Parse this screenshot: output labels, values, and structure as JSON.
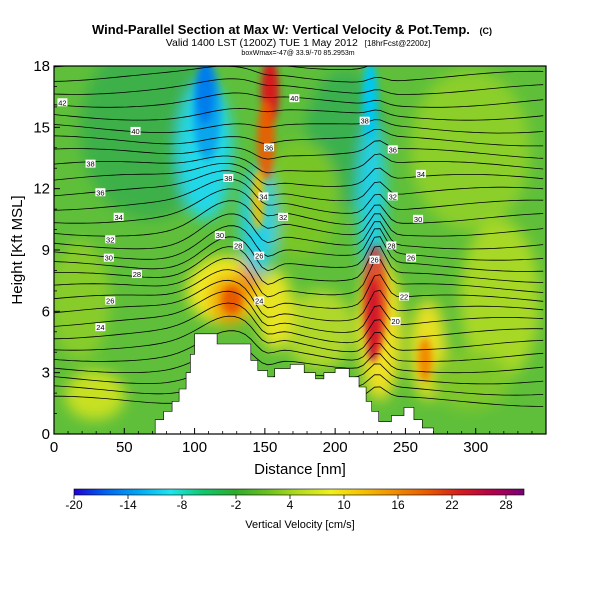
{
  "chart_data": {
    "type": "heatmap",
    "title": "Wind-Parallel Section at Max W: Vertical Velocity & Pot.Temp.",
    "title_mark": "(C)",
    "subtitle": "Valid 1400 LST (1200Z) TUE 1 May 2012",
    "subtitle_forecast": "[18hrFcst@2200z]",
    "info_line": "boxWmax=-47@ 33.9/-70 85.2953m",
    "xlabel": "Distance [nm]",
    "ylabel": "Height [Kft MSL]",
    "xlim": [
      0,
      350
    ],
    "ylim": [
      0,
      18
    ],
    "x_ticks": [
      "0",
      "50",
      "100",
      "150",
      "200",
      "250",
      "300"
    ],
    "x_tick_values": [
      0,
      50,
      100,
      150,
      200,
      250,
      300
    ],
    "y_ticks": [
      "0",
      "3",
      "6",
      "9",
      "12",
      "15",
      "18"
    ],
    "y_tick_values": [
      0,
      3,
      6,
      9,
      12,
      15,
      18
    ],
    "grid": false,
    "colorbar": {
      "label": "Vertical Velocity [cm/s]",
      "ticks": [
        "-20",
        "-14",
        "-8",
        "-2",
        "4",
        "10",
        "16",
        "22",
        "28"
      ],
      "tick_values": [
        -20,
        -14,
        -8,
        -2,
        4,
        10,
        16,
        22,
        28
      ],
      "range": [
        -20,
        30
      ],
      "colors": [
        "#1d00d6",
        "#0064f0",
        "#00a8f5",
        "#1ee6ee",
        "#10c870",
        "#2daa2d",
        "#68c020",
        "#b4dc1e",
        "#f0f01e",
        "#f5c000",
        "#f08c00",
        "#e85a00",
        "#d41e1e",
        "#b4004a",
        "#780078"
      ]
    },
    "contour_labels": [
      {
        "text": "42",
        "x": 6,
        "y": 16.2
      },
      {
        "text": "40",
        "x": 58,
        "y": 14.8
      },
      {
        "text": "38",
        "x": 26,
        "y": 13.2
      },
      {
        "text": "36",
        "x": 33,
        "y": 11.8
      },
      {
        "text": "34",
        "x": 46,
        "y": 10.6
      },
      {
        "text": "32",
        "x": 40,
        "y": 9.5
      },
      {
        "text": "30",
        "x": 39,
        "y": 8.6
      },
      {
        "text": "28",
        "x": 59,
        "y": 7.8
      },
      {
        "text": "26",
        "x": 40,
        "y": 6.5
      },
      {
        "text": "24",
        "x": 33,
        "y": 5.2
      },
      {
        "text": "40",
        "x": 171,
        "y": 16.4
      },
      {
        "text": "38",
        "x": 221,
        "y": 15.3
      },
      {
        "text": "36",
        "x": 153,
        "y": 14.0
      },
      {
        "text": "36",
        "x": 241,
        "y": 13.9
      },
      {
        "text": "38",
        "x": 124,
        "y": 12.5
      },
      {
        "text": "34",
        "x": 261,
        "y": 12.7
      },
      {
        "text": "34",
        "x": 149,
        "y": 11.6
      },
      {
        "text": "32",
        "x": 241,
        "y": 11.6
      },
      {
        "text": "32",
        "x": 163,
        "y": 10.6
      },
      {
        "text": "30",
        "x": 118,
        "y": 9.7
      },
      {
        "text": "30",
        "x": 259,
        "y": 10.5
      },
      {
        "text": "28",
        "x": 131,
        "y": 9.2
      },
      {
        "text": "28",
        "x": 240,
        "y": 9.2
      },
      {
        "text": "26",
        "x": 146,
        "y": 8.7
      },
      {
        "text": "26",
        "x": 228,
        "y": 8.5
      },
      {
        "text": "26",
        "x": 254,
        "y": 8.6
      },
      {
        "text": "24",
        "x": 146,
        "y": 6.5
      },
      {
        "text": "22",
        "x": 249,
        "y": 6.7
      },
      {
        "text": "20",
        "x": 243,
        "y": 5.5
      }
    ],
    "terrain": [
      [
        0,
        0
      ],
      [
        72,
        0
      ],
      [
        72,
        0.7
      ],
      [
        78,
        0.7
      ],
      [
        78,
        1.1
      ],
      [
        84,
        1.1
      ],
      [
        84,
        1.6
      ],
      [
        89,
        1.6
      ],
      [
        89,
        2.2
      ],
      [
        94,
        2.2
      ],
      [
        94,
        3.0
      ],
      [
        97,
        3.0
      ],
      [
        97,
        3.9
      ],
      [
        100,
        3.9
      ],
      [
        100,
        4.9
      ],
      [
        116,
        4.9
      ],
      [
        116,
        4.4
      ],
      [
        140,
        4.4
      ],
      [
        140,
        3.6
      ],
      [
        145,
        3.6
      ],
      [
        145,
        3.1
      ],
      [
        152,
        3.1
      ],
      [
        152,
        2.8
      ],
      [
        157,
        2.8
      ],
      [
        157,
        3.2
      ],
      [
        168,
        3.2
      ],
      [
        168,
        3.4
      ],
      [
        178,
        3.4
      ],
      [
        178,
        3.0
      ],
      [
        186,
        3.0
      ],
      [
        186,
        2.7
      ],
      [
        192,
        2.7
      ],
      [
        192,
        3.0
      ],
      [
        200,
        3.0
      ],
      [
        200,
        3.2
      ],
      [
        210,
        3.2
      ],
      [
        210,
        2.8
      ],
      [
        217,
        2.8
      ],
      [
        217,
        2.3
      ],
      [
        222,
        2.3
      ],
      [
        222,
        1.6
      ],
      [
        226,
        1.6
      ],
      [
        226,
        1.1
      ],
      [
        231,
        1.1
      ],
      [
        231,
        0.6
      ],
      [
        240,
        0.6
      ],
      [
        240,
        0.9
      ],
      [
        249,
        0.9
      ],
      [
        249,
        1.3
      ],
      [
        256,
        1.3
      ],
      [
        256,
        0.7
      ],
      [
        262,
        0.7
      ],
      [
        262,
        0.3
      ],
      [
        270,
        0.3
      ],
      [
        270,
        0
      ],
      [
        350,
        0
      ]
    ]
  }
}
